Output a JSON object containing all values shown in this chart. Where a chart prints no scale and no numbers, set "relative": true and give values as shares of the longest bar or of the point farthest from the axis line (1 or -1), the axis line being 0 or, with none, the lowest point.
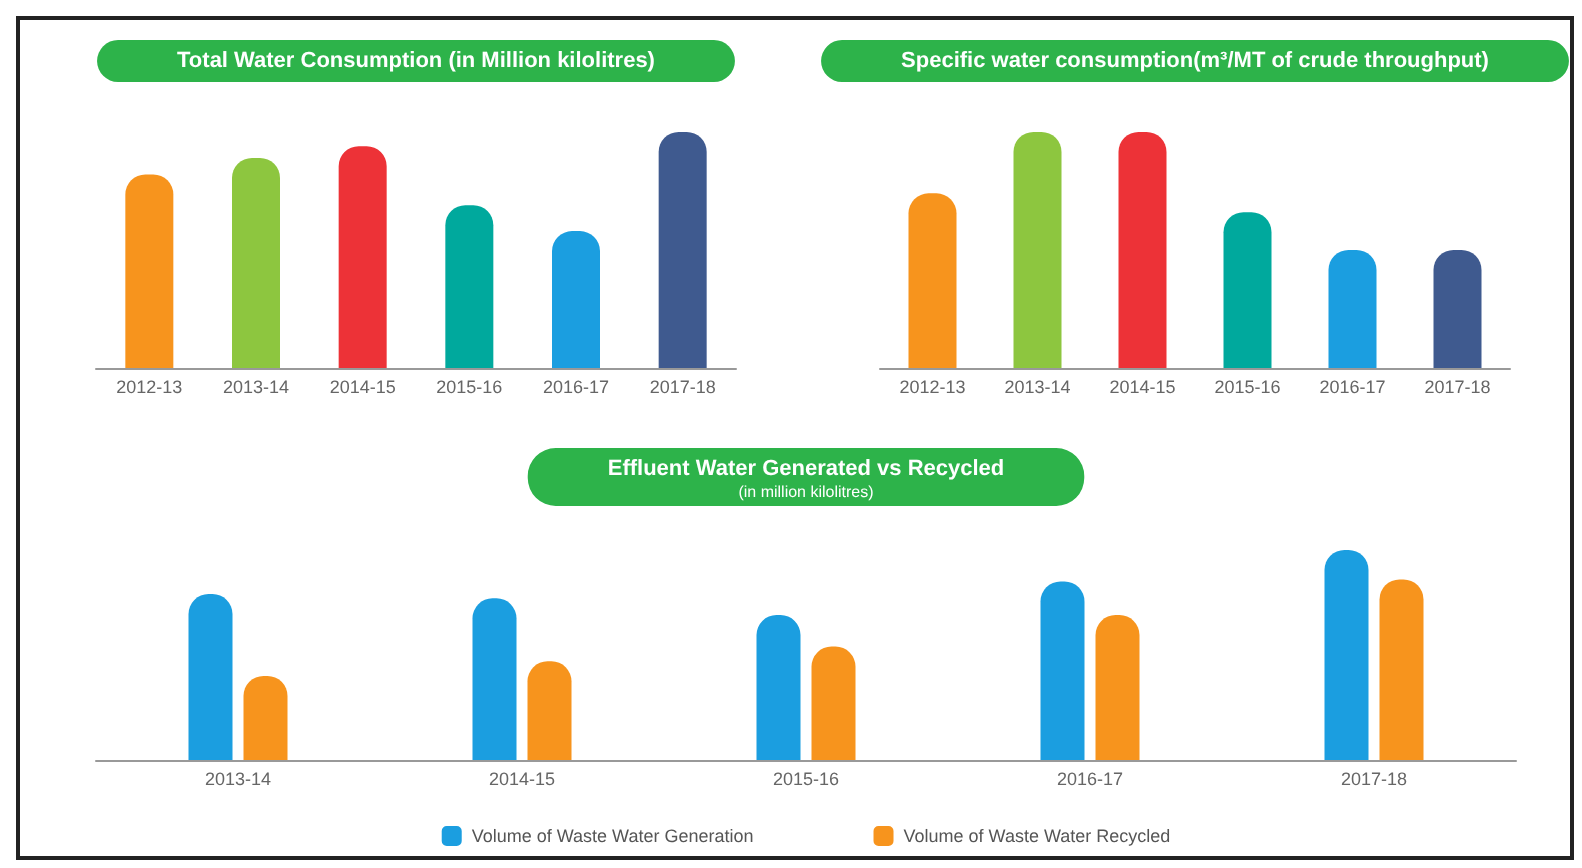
{
  "chart_data": [
    {
      "type": "bar",
      "title": "Total Water Consumption (in Million kilolitres)",
      "categories": [
        "2012-13",
        "2013-14",
        "2014-15",
        "2015-16",
        "2016-17",
        "2017-18"
      ],
      "relative": true,
      "values": [
        0.82,
        0.89,
        0.94,
        0.69,
        0.58,
        1
      ],
      "colors": [
        "#f7941d",
        "#8dc63f",
        "#ed3237",
        "#00a99d",
        "#1b9ee0",
        "#3f5a8f"
      ],
      "grid": false,
      "legend": false
    },
    {
      "type": "bar",
      "title": "Specific water consumption(m³/MT of crude throughput)",
      "categories": [
        "2012-13",
        "2013-14",
        "2014-15",
        "2015-16",
        "2016-17",
        "2017-18"
      ],
      "relative": true,
      "values": [
        0.74,
        1,
        1,
        0.66,
        0.5,
        0.5
      ],
      "colors": [
        "#f7941d",
        "#8dc63f",
        "#ed3237",
        "#00a99d",
        "#1b9ee0",
        "#3f5a8f"
      ],
      "grid": false,
      "legend": false
    },
    {
      "type": "bar",
      "title": "Effluent Water Generated vs Recycled",
      "subtitle": "(in million kilolitres)",
      "categories": [
        "2013-14",
        "2014-15",
        "2015-16",
        "2016-17",
        "2017-18"
      ],
      "relative": true,
      "grid": false,
      "legend": "bottom",
      "series": [
        {
          "name": "Volume of Waste Water Generation",
          "color": "#1b9ee0",
          "values": [
            0.79,
            0.77,
            0.69,
            0.85,
            1
          ]
        },
        {
          "name": "Volume of Waste Water Recycled",
          "color": "#f7941d",
          "values": [
            0.4,
            0.47,
            0.54,
            0.69,
            0.86
          ]
        }
      ]
    }
  ]
}
